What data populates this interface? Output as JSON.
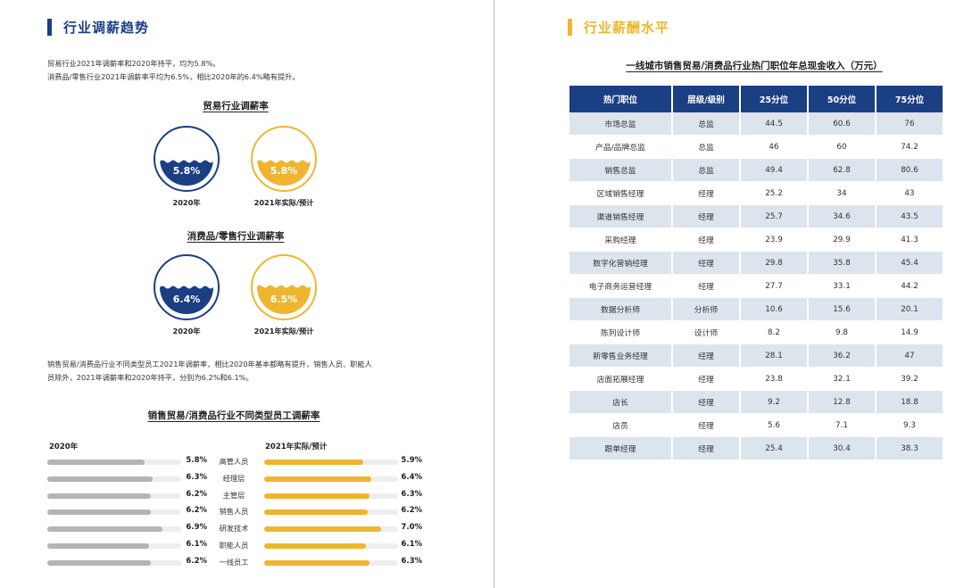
{
  "left": {
    "trend": {
      "title": "行业调薪趋势",
      "intro_line1": "贸易行业2021年调薪率和2020年持平，均为5.8%。",
      "intro_line2": "消费品/零售行业2021年调薪率平均为6.5%，相比2020年的6.4%略有提升。"
    },
    "trade_rate": {
      "title": "贸易行业调薪率",
      "items": [
        {
          "value": "5.8%",
          "label": "2020年",
          "fill": 0.45
        },
        {
          "value": "5.8%",
          "label": "2021年实际/预计",
          "fill": 0.45
        }
      ]
    },
    "consumer_rate": {
      "title": "消费品/零售行业调薪率",
      "items": [
        {
          "value": "6.4%",
          "label": "2020年",
          "fill": 0.5
        },
        {
          "value": "6.5%",
          "label": "2021年实际/预计",
          "fill": 0.52
        }
      ]
    },
    "staff_paragraph": {
      "line1": "销售贸易/消费品行业不同类型员工2021年调薪率，相比2020年基本都略有提升，销售人员、职能人",
      "line2": "员除外，2021年调薪率和2020年持平，分别为6.2%和6.1%。"
    },
    "staff_rates": {
      "title": "销售贸易/消费品行业不同类型员工调薪率",
      "header_2020": "2020年",
      "header_2021": "2021年实际/预计",
      "rows": [
        {
          "category": "高管人员",
          "v2020": "5.8%",
          "v2021": "5.9%",
          "n2020": 5.8,
          "n2021": 5.9
        },
        {
          "category": "经理层",
          "v2020": "6.3%",
          "v2021": "6.4%",
          "n2020": 6.3,
          "n2021": 6.4
        },
        {
          "category": "主管层",
          "v2020": "6.2%",
          "v2021": "6.3%",
          "n2020": 6.2,
          "n2021": 6.3
        },
        {
          "category": "销售人员",
          "v2020": "6.2%",
          "v2021": "6.2%",
          "n2020": 6.2,
          "n2021": 6.2
        },
        {
          "category": "研发技术",
          "v2020": "6.9%",
          "v2021": "7.0%",
          "n2020": 6.9,
          "n2021": 7.0
        },
        {
          "category": "职能人员",
          "v2020": "6.1%",
          "v2021": "6.1%",
          "n2020": 6.1,
          "n2021": 6.1
        },
        {
          "category": "一线员工",
          "v2020": "6.2%",
          "v2021": "6.3%",
          "n2020": 6.2,
          "n2021": 6.3
        }
      ]
    }
  },
  "right": {
    "level": {
      "title": "行业薪酬水平",
      "table_title": "一线城市销售贸易/消费品行业热门职位年总现金收入（万元）",
      "headers": [
        "热门职位",
        "层级/级别",
        "25分位",
        "50分位",
        "75分位"
      ],
      "rows": [
        [
          "市场总监",
          "总监",
          "44.5",
          "60.6",
          "76"
        ],
        [
          "产品/品牌总监",
          "总监",
          "46",
          "60",
          "74.2"
        ],
        [
          "销售总监",
          "总监",
          "49.4",
          "62.8",
          "80.6"
        ],
        [
          "区域销售经理",
          "经理",
          "25.2",
          "34",
          "43"
        ],
        [
          "渠道销售经理",
          "经理",
          "25.7",
          "34.6",
          "43.5"
        ],
        [
          "采购经理",
          "经理",
          "23.9",
          "29.9",
          "41.3"
        ],
        [
          "数字化营销经理",
          "经理",
          "29.8",
          "35.8",
          "45.4"
        ],
        [
          "电子商务运营经理",
          "经理",
          "27.7",
          "33.1",
          "44.2"
        ],
        [
          "数据分析师",
          "分析师",
          "10.6",
          "15.6",
          "20.1"
        ],
        [
          "陈列设计师",
          "设计师",
          "8.2",
          "9.8",
          "14.9"
        ],
        [
          "新零售业务经理",
          "经理",
          "28.1",
          "36.2",
          "47"
        ],
        [
          "店面拓展经理",
          "经理",
          "23.8",
          "32.1",
          "39.2"
        ],
        [
          "店长",
          "经理",
          "9.2",
          "12.8",
          "18.8"
        ],
        [
          "店员",
          "经理",
          "5.6",
          "7.1",
          "9.3"
        ],
        [
          "跟单经理",
          "经理",
          "25.4",
          "30.4",
          "38.3"
        ]
      ]
    }
  },
  "colors": {
    "navy": "#1b3f83",
    "gold": "#eeb62f",
    "gray_bar": "#b4b4b4",
    "row_tint": "#dce5ee"
  }
}
